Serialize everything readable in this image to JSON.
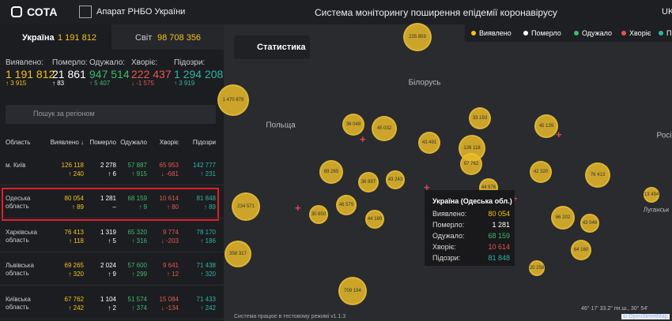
{
  "header": {
    "logo": "СОТА",
    "org": "Апарат РНБО України",
    "title": "Система моніторингу поширення епідемії коронавірусу",
    "lang": "UK"
  },
  "tabs": [
    {
      "name": "Україна",
      "value": "1 191 812"
    },
    {
      "name": "Світ",
      "value": "98 708 356"
    }
  ],
  "stats": [
    {
      "label": "Виявлено:",
      "value": "1 191 812",
      "delta": "↑ 3 915"
    },
    {
      "label": "Померло:",
      "value": "21 861",
      "delta": "↑ 83"
    },
    {
      "label": "Одужало:",
      "value": "947 514",
      "delta": "↑ 5 407"
    },
    {
      "label": "Хворіє:",
      "value": "222 437",
      "delta": "↓ -1 575"
    },
    {
      "label": "Підозри:",
      "value": "1 294 208",
      "delta": "↑ 3 919"
    }
  ],
  "search_placeholder": "Пошук за регіоном",
  "table": {
    "columns": [
      "Область",
      "Виявлено ↓",
      "Померло",
      "Одужало",
      "Хворіє",
      "Підозри"
    ],
    "rows": [
      {
        "region": "м. Київ",
        "cells": [
          {
            "value": "126 118",
            "delta": "↑ 240"
          },
          {
            "value": "2 278",
            "delta": "↑ 6"
          },
          {
            "value": "57 887",
            "delta": "↑ 915"
          },
          {
            "value": "65 953",
            "delta": "↓ -681"
          },
          {
            "value": "142 777",
            "delta": "↑ 231"
          }
        ]
      },
      {
        "region": "Одеська область",
        "cells": [
          {
            "value": "80 054",
            "delta": "↑ 89"
          },
          {
            "value": "1 281",
            "delta": "–"
          },
          {
            "value": "68 159",
            "delta": "↑ 9"
          },
          {
            "value": "10 614",
            "delta": "↑ 80"
          },
          {
            "value": "81 848",
            "delta": "↑ 89"
          }
        ]
      },
      {
        "region": "Харківська область",
        "cells": [
          {
            "value": "76 413",
            "delta": "↑ 118"
          },
          {
            "value": "1 319",
            "delta": "↑ 5"
          },
          {
            "value": "65 320",
            "delta": "↑ 316"
          },
          {
            "value": "9 774",
            "delta": "↓ -203"
          },
          {
            "value": "78 170",
            "delta": "↑ 186"
          }
        ]
      },
      {
        "region": "Львівська область",
        "cells": [
          {
            "value": "69 265",
            "delta": "↑ 320"
          },
          {
            "value": "2 024",
            "delta": "↑ 9"
          },
          {
            "value": "57 600",
            "delta": "↑ 299"
          },
          {
            "value": "9 641",
            "delta": "↑ 12"
          },
          {
            "value": "71 438",
            "delta": "↑ 320"
          }
        ]
      },
      {
        "region": "Київська область",
        "cells": [
          {
            "value": "67 762",
            "delta": "↑ 242"
          },
          {
            "value": "1 104",
            "delta": "↑ 2"
          },
          {
            "value": "51 574",
            "delta": "↑ 374"
          },
          {
            "value": "15 084",
            "delta": "↓ -134"
          },
          {
            "value": "71 433",
            "delta": "↑ 242"
          }
        ]
      }
    ]
  },
  "map": {
    "button": "Статистика",
    "legend": [
      "Виявлено",
      "Померло",
      "Одужало",
      "Хворіє",
      "Підозри"
    ],
    "countries": [
      "Білорусь",
      "Польща",
      "Росі",
      "Луганськ"
    ],
    "bubbles": [
      "235 859",
      "1 470 879",
      "36 048",
      "45 032",
      "33 193",
      "45 139",
      "43 491",
      "126 118",
      "67 762",
      "69 265",
      "36 897",
      "43 243",
      "42 320",
      "76 413",
      "44 976",
      "234 571",
      "46 579",
      "30 650",
      "44 189",
      "66 202",
      "43 048",
      "13 494",
      "64 160",
      "20 258",
      "358 317",
      "709 194"
    ],
    "tooltip": {
      "title": "Україна (Одеська обл.)",
      "rows": [
        {
          "label": "Виявлено:",
          "value": "80 054"
        },
        {
          "label": "Померло:",
          "value": "1 281"
        },
        {
          "label": "Одужало:",
          "value": "68 159"
        },
        {
          "label": "Хворіє:",
          "value": "10 614"
        },
        {
          "label": "Підозри:",
          "value": "81 848"
        }
      ]
    },
    "footer": "Система працює в тестовому режимі v1.1.3",
    "coords": "46° 17' 33.2'' пн.ш., 30° 54'",
    "attribution": "© OpenStreetMap"
  }
}
